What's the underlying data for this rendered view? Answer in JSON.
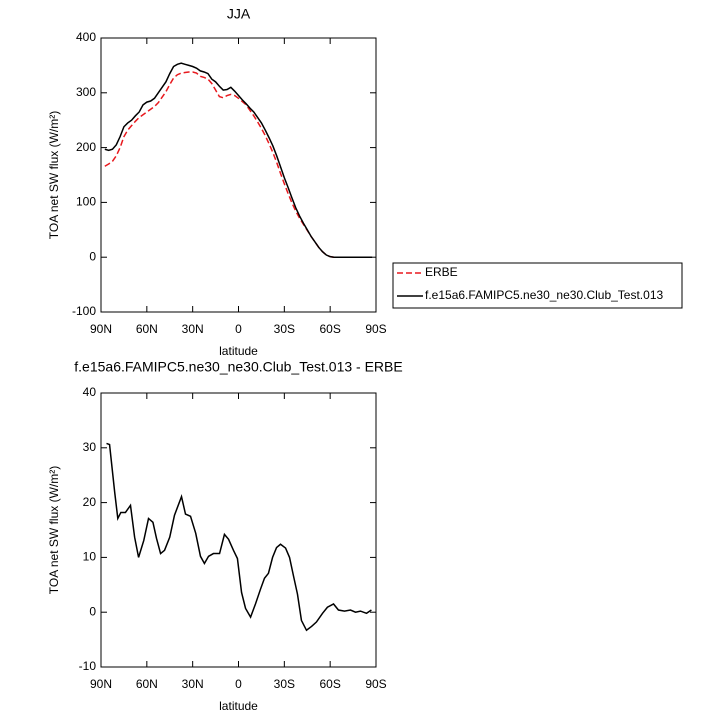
{
  "chart_data": [
    {
      "type": "line",
      "title": "JJA",
      "xlabel": "latitude",
      "ylabel": "TOA net SW flux (W/m²)",
      "x": [
        87.5,
        85,
        82.5,
        80,
        77.5,
        75,
        72.5,
        70,
        67.5,
        65,
        62.5,
        60,
        57.5,
        55,
        52.5,
        50,
        47.5,
        45,
        42.5,
        40,
        37.5,
        35,
        32.5,
        30,
        27.5,
        25,
        22.5,
        20,
        17.5,
        15,
        12.5,
        10,
        7.5,
        5,
        2.5,
        0,
        -2.5,
        -5,
        -7.5,
        -10,
        -12.5,
        -15,
        -17.5,
        -20,
        -22.5,
        -25,
        -27.5,
        -30,
        -32.5,
        -35,
        -37.5,
        -40,
        -42.5,
        -45,
        -47.5,
        -50,
        -52.5,
        -55,
        -57.5,
        -60,
        -62.5,
        -65,
        -67.5,
        -70,
        -72.5,
        -75,
        -77.5,
        -80,
        -82.5,
        -85,
        -87.5
      ],
      "series": [
        {
          "name": "ERBE",
          "color": "#e8191e",
          "linestyle": "dashed",
          "values": [
            166,
            170,
            175,
            185,
            200,
            220,
            232,
            240,
            248,
            255,
            260,
            265,
            270,
            275,
            282,
            292,
            302,
            315,
            327,
            333,
            336,
            337,
            338,
            338,
            336,
            330,
            328,
            325,
            317,
            305,
            293,
            291,
            295,
            297,
            295,
            290,
            284,
            278,
            268,
            258,
            247,
            235,
            222,
            207,
            191,
            173,
            153,
            134,
            116,
            99,
            84,
            71,
            60,
            49,
            38,
            28,
            18,
            10,
            4,
            1,
            0,
            0,
            0,
            0,
            0,
            0,
            0,
            0,
            0,
            0,
            0
          ]
        },
        {
          "name": "f.e15a6.FAMIPC5.ne30_ne30.Club_Test.013",
          "color": "#000000",
          "linestyle": "solid",
          "values": [
            197,
            195,
            197,
            205,
            220,
            238,
            245,
            250,
            258,
            265,
            278,
            283,
            285,
            290,
            300,
            310,
            320,
            335,
            348,
            352,
            354,
            352,
            350,
            348,
            345,
            340,
            338,
            335,
            325,
            320,
            312,
            305,
            306,
            310,
            303,
            295,
            287,
            280,
            272,
            265,
            255,
            245,
            232,
            218,
            203,
            185,
            165,
            145,
            127,
            108,
            90,
            75,
            62,
            50,
            38,
            28,
            18,
            10,
            4,
            1,
            0,
            0,
            0,
            0,
            0,
            0,
            0,
            0,
            0,
            0,
            0
          ]
        }
      ],
      "xlim": [
        90,
        -90
      ],
      "xticks": [
        {
          "value": 90,
          "label": "90N"
        },
        {
          "value": 60,
          "label": "60N"
        },
        {
          "value": 30,
          "label": "30N"
        },
        0,
        {
          "value": -30,
          "label": "30S"
        },
        {
          "value": -60,
          "label": "60S"
        },
        {
          "value": -90,
          "label": "90S"
        }
      ],
      "ylim": [
        -100,
        400
      ],
      "yticks": [
        -100,
        0,
        100,
        200,
        300,
        400
      ],
      "legend": "right"
    },
    {
      "type": "line",
      "title": "f.e15a6.FAMIPC5.ne30_ne30.Club_Test.013 - ERBE",
      "xlabel": "latitude",
      "ylabel": "TOA net SW flux (W/m²)",
      "x": [
        86.4,
        84.4,
        81,
        79,
        77,
        74,
        70.7,
        68,
        65.4,
        62,
        58.9,
        56,
        53.7,
        51,
        48.4,
        45,
        41.9,
        37.3,
        34.7,
        31.4,
        28,
        24.9,
        22.3,
        19.6,
        16.4,
        12.4,
        9.2,
        6.5,
        3.3,
        0.7,
        -2,
        -4.6,
        -7.9,
        -11.1,
        -14.4,
        -17,
        -19.6,
        -22.3,
        -24.9,
        -27.5,
        -30.8,
        -33.4,
        -36,
        -38.6,
        -41.2,
        -44.5,
        -47.8,
        -51,
        -55,
        -58.2,
        -62.2,
        -65.4,
        -69.4,
        -73.3,
        -76.6,
        -79.8,
        -83.8,
        -87
      ],
      "values": [
        30.8,
        30.6,
        21.8,
        17.1,
        18.2,
        18.2,
        19.5,
        13.7,
        10,
        13.1,
        17.1,
        16.4,
        13.5,
        10.7,
        11.3,
        13.7,
        17.7,
        21.1,
        17.9,
        17.5,
        14.4,
        10.2,
        8.9,
        10.2,
        10.7,
        10.7,
        14.2,
        13.3,
        11.3,
        9.8,
        3.6,
        0.7,
        -0.9,
        1.5,
        4.2,
        6.2,
        7.1,
        10,
        11.8,
        12.4,
        11.7,
        10,
        6.6,
        3.3,
        -1.5,
        -3.3,
        -2.6,
        -1.8,
        -0.2,
        0.9,
        1.5,
        0.4,
        0.2,
        0.4,
        0,
        0.2,
        -0.2,
        0.4
      ],
      "color": "#000000",
      "xlim": [
        90,
        -90
      ],
      "xticks": [
        {
          "value": 90,
          "label": "90N"
        },
        {
          "value": 60,
          "label": "60N"
        },
        {
          "value": 30,
          "label": "30N"
        },
        0,
        {
          "value": -30,
          "label": "30S"
        },
        {
          "value": -60,
          "label": "60S"
        },
        {
          "value": -90,
          "label": "90S"
        }
      ],
      "ylim": [
        -10,
        40
      ],
      "yticks": [
        -10,
        0,
        10,
        20,
        30,
        40
      ]
    }
  ]
}
